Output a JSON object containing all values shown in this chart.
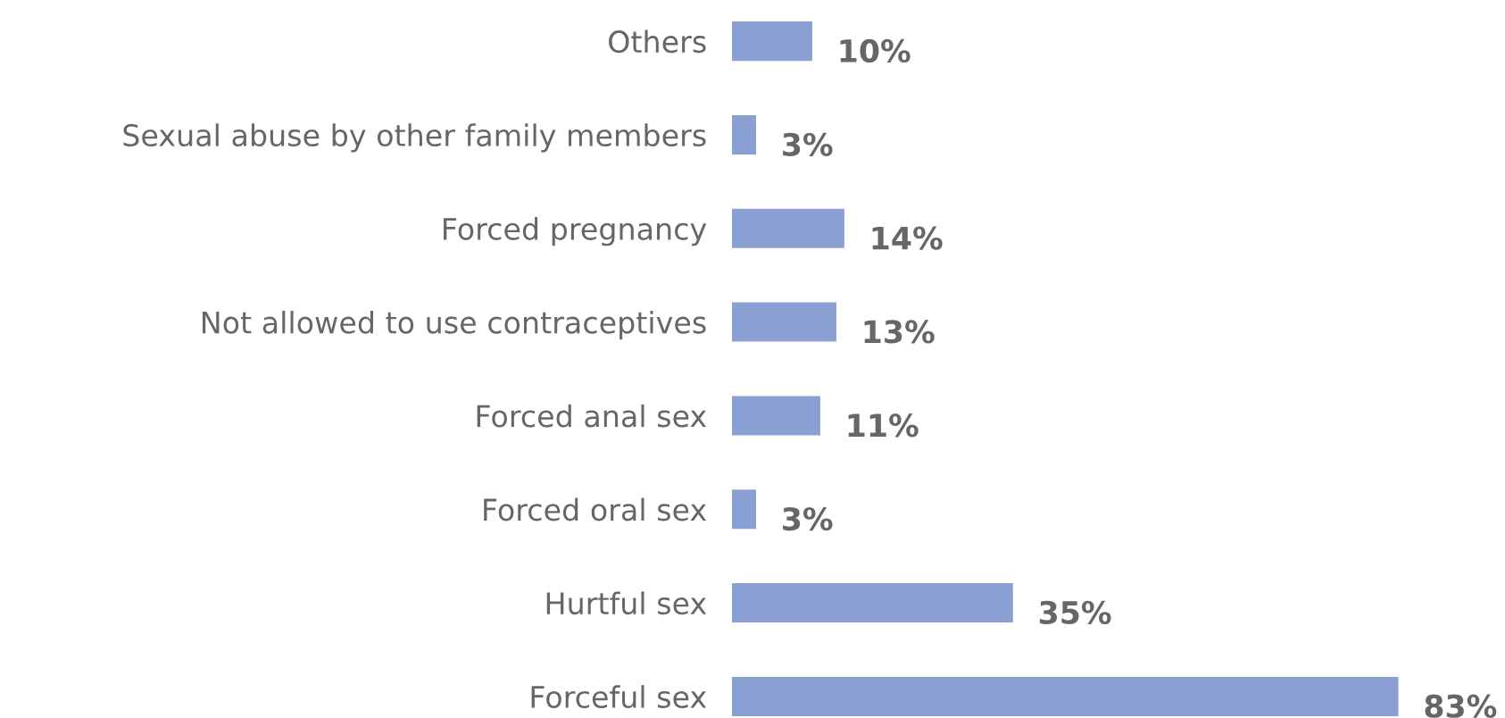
{
  "chart_data": {
    "type": "bar",
    "orientation": "horizontal",
    "categories": [
      "Others",
      "Sexual abuse by other family members",
      "Forced pregnancy",
      "Not allowed to use contraceptives",
      "Forced anal sex",
      "Forced oral sex",
      "Hurtful sex",
      "Forceful sex"
    ],
    "values": [
      10,
      3,
      14,
      13,
      11,
      3,
      35,
      83
    ],
    "color": "#8a9fd2",
    "value_labels": [
      "10%",
      "3%",
      "14%",
      "13%",
      "11%",
      "3%",
      "35%",
      "83%"
    ],
    "grid": false,
    "legend": false,
    "tick_labels": "y"
  }
}
